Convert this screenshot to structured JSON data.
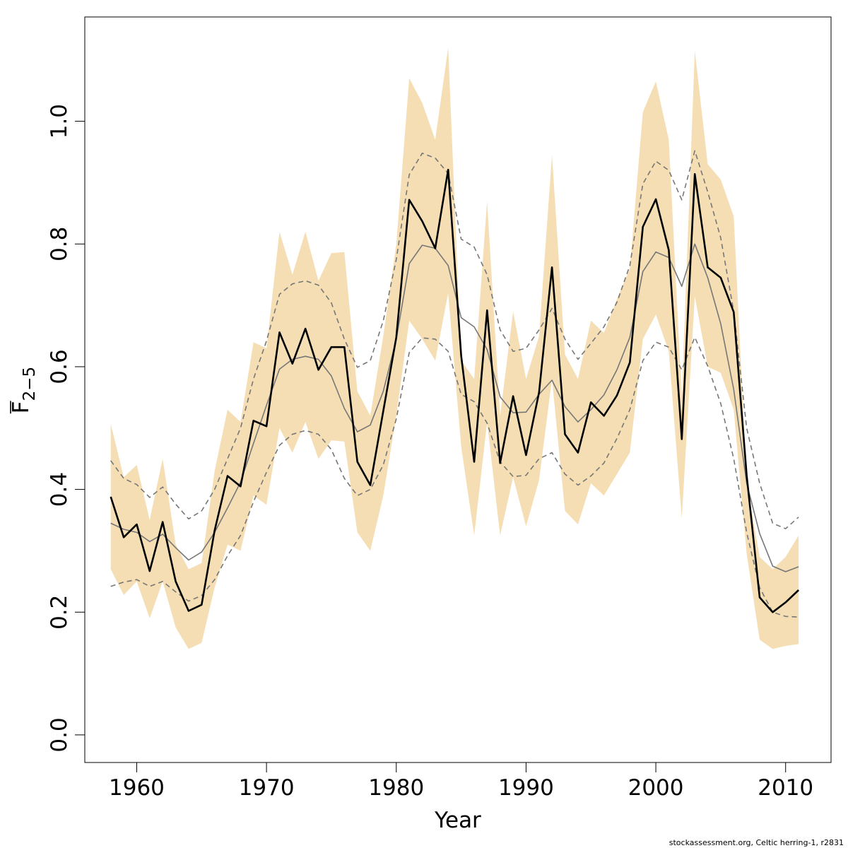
{
  "chart_data": {
    "type": "line",
    "xlabel": "Year",
    "ylabel": {
      "base": "F",
      "subscript": "2−5"
    },
    "xlim": [
      1956,
      2013.5
    ],
    "ylim": [
      -0.045,
      1.17
    ],
    "xticks": [
      "1960",
      "1970",
      "1980",
      "1990",
      "2000",
      "2010"
    ],
    "yticks": [
      "0.0",
      "0.2",
      "0.4",
      "0.6",
      "0.8",
      "1.0"
    ],
    "credit": "stockassessment.org, Celtic  herring-1, r2831",
    "colors": {
      "band": "#F5DEB3",
      "estimate": "#000000",
      "retro": "#777777",
      "frame": "#000000"
    },
    "x": [
      1958,
      1959,
      1960,
      1961,
      1962,
      1963,
      1964,
      1965,
      1966,
      1967,
      1968,
      1969,
      1970,
      1971,
      1972,
      1973,
      1974,
      1975,
      1976,
      1977,
      1978,
      1979,
      1980,
      1981,
      1982,
      1983,
      1984,
      1985,
      1986,
      1987,
      1988,
      1989,
      1990,
      1991,
      1992,
      1993,
      1994,
      1995,
      1996,
      1997,
      1998,
      1999,
      2000,
      2001,
      2002,
      2003,
      2004,
      2005,
      2006,
      2007,
      2008,
      2009,
      2010,
      2011
    ],
    "series": [
      {
        "kind": "band",
        "upper": [
          0.507,
          0.42,
          0.44,
          0.35,
          0.45,
          0.31,
          0.27,
          0.28,
          0.43,
          0.53,
          0.51,
          0.64,
          0.63,
          0.82,
          0.75,
          0.82,
          0.74,
          0.785,
          0.787,
          0.56,
          0.52,
          0.65,
          0.8,
          1.07,
          1.03,
          0.97,
          1.12,
          0.61,
          0.58,
          0.87,
          0.52,
          0.69,
          0.58,
          0.65,
          0.945,
          0.62,
          0.58,
          0.675,
          0.655,
          0.71,
          0.76,
          1.015,
          1.065,
          0.97,
          0.55,
          1.115,
          0.93,
          0.905,
          0.845,
          0.41,
          0.29,
          0.27,
          0.29,
          0.325
        ],
        "lower": [
          0.27,
          0.228,
          0.25,
          0.19,
          0.25,
          0.175,
          0.14,
          0.15,
          0.24,
          0.31,
          0.3,
          0.39,
          0.375,
          0.5,
          0.46,
          0.51,
          0.45,
          0.48,
          0.478,
          0.33,
          0.3,
          0.39,
          0.52,
          0.675,
          0.645,
          0.61,
          0.72,
          0.47,
          0.325,
          0.51,
          0.325,
          0.42,
          0.34,
          0.415,
          0.58,
          0.365,
          0.343,
          0.41,
          0.39,
          0.425,
          0.46,
          0.645,
          0.685,
          0.625,
          0.353,
          0.715,
          0.6,
          0.59,
          0.53,
          0.295,
          0.155,
          0.14,
          0.145,
          0.148
        ]
      },
      {
        "kind": "dashed",
        "values": [
          0.447,
          0.418,
          0.408,
          0.387,
          0.404,
          0.376,
          0.352,
          0.365,
          0.4,
          0.45,
          0.5,
          0.58,
          0.642,
          0.718,
          0.735,
          0.74,
          0.733,
          0.704,
          0.645,
          0.599,
          0.61,
          0.675,
          0.775,
          0.913,
          0.948,
          0.94,
          0.915,
          0.808,
          0.795,
          0.75,
          0.66,
          0.625,
          0.63,
          0.66,
          0.695,
          0.645,
          0.612,
          0.638,
          0.665,
          0.705,
          0.765,
          0.898,
          0.935,
          0.92,
          0.872,
          0.952,
          0.885,
          0.81,
          0.69,
          0.5,
          0.41,
          0.345,
          0.336,
          0.355
        ]
      },
      {
        "kind": "dashed",
        "values": [
          0.242,
          0.249,
          0.253,
          0.242,
          0.25,
          0.233,
          0.218,
          0.227,
          0.253,
          0.292,
          0.325,
          0.38,
          0.428,
          0.472,
          0.49,
          0.496,
          0.49,
          0.465,
          0.418,
          0.39,
          0.4,
          0.44,
          0.515,
          0.623,
          0.647,
          0.645,
          0.625,
          0.555,
          0.543,
          0.508,
          0.445,
          0.421,
          0.423,
          0.45,
          0.46,
          0.425,
          0.407,
          0.422,
          0.443,
          0.483,
          0.53,
          0.61,
          0.64,
          0.632,
          0.595,
          0.648,
          0.601,
          0.54,
          0.45,
          0.33,
          0.24,
          0.2,
          0.193,
          0.192
        ]
      },
      {
        "kind": "retro",
        "values": [
          0.345,
          0.335,
          0.33,
          0.315,
          0.327,
          0.305,
          0.285,
          0.298,
          0.33,
          0.37,
          0.412,
          0.475,
          0.537,
          0.596,
          0.612,
          0.617,
          0.612,
          0.585,
          0.532,
          0.494,
          0.505,
          0.56,
          0.645,
          0.768,
          0.798,
          0.793,
          0.765,
          0.68,
          0.665,
          0.628,
          0.551,
          0.525,
          0.526,
          0.555,
          0.578,
          0.535,
          0.51,
          0.53,
          0.554,
          0.595,
          0.648,
          0.755,
          0.787,
          0.778,
          0.731,
          0.8,
          0.745,
          0.67,
          0.563,
          0.41,
          0.328,
          0.275,
          0.266,
          0.274
        ]
      },
      {
        "kind": "estimate",
        "values": [
          0.388,
          0.322,
          0.343,
          0.267,
          0.347,
          0.25,
          0.202,
          0.212,
          0.333,
          0.422,
          0.405,
          0.512,
          0.503,
          0.656,
          0.605,
          0.662,
          0.595,
          0.632,
          0.632,
          0.445,
          0.407,
          0.528,
          0.648,
          0.872,
          0.837,
          0.793,
          0.921,
          0.618,
          0.445,
          0.692,
          0.443,
          0.552,
          0.456,
          0.558,
          0.762,
          0.49,
          0.46,
          0.542,
          0.52,
          0.553,
          0.607,
          0.828,
          0.873,
          0.79,
          0.482,
          0.914,
          0.762,
          0.745,
          0.689,
          0.423,
          0.224,
          0.2,
          0.216,
          0.236
        ]
      }
    ]
  }
}
